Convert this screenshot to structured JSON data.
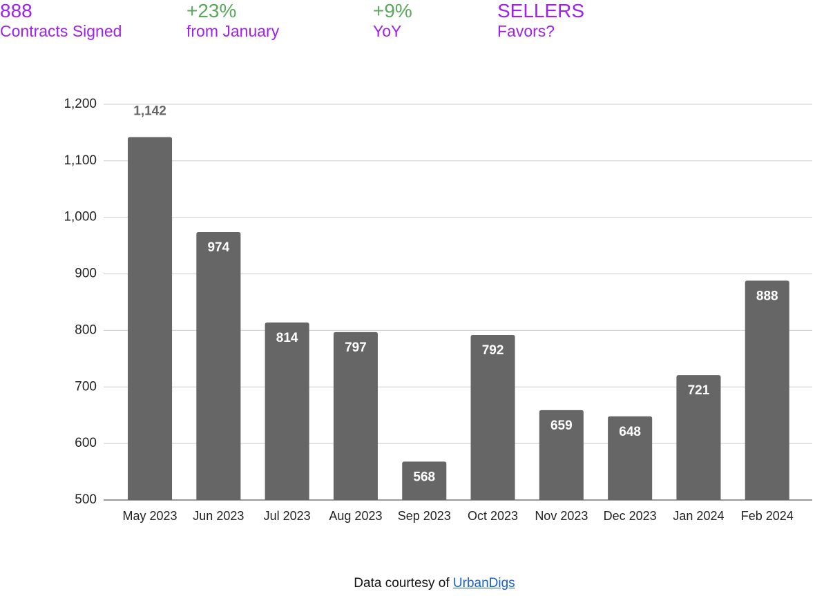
{
  "header": {
    "stats": [
      {
        "value": "888",
        "label": "Contracts Signed"
      },
      {
        "value": "+23%",
        "label": "from January"
      },
      {
        "value": "+9%",
        "label": "YoY"
      },
      {
        "value": "SELLERS",
        "label": "Favors?"
      }
    ]
  },
  "chart_data": {
    "type": "bar",
    "categories": [
      "May 2023",
      "Jun 2023",
      "Jul 2023",
      "Aug 2023",
      "Sep 2023",
      "Oct 2023",
      "Nov 2023",
      "Dec 2023",
      "Jan 2024",
      "Feb 2024"
    ],
    "values": [
      1142,
      974,
      814,
      797,
      568,
      792,
      659,
      648,
      721,
      888
    ],
    "value_labels": [
      "1,142",
      "974",
      "814",
      "797",
      "568",
      "792",
      "659",
      "648",
      "721",
      "888"
    ],
    "color": "#666666",
    "ylim": [
      500,
      1200
    ],
    "yticks": [
      500,
      600,
      700,
      800,
      900,
      {
        "value": 1000,
        "label": "1,000"
      },
      {
        "value": 1100,
        "label": "1,100"
      },
      {
        "value": 1200,
        "label": "1,200"
      }
    ],
    "grid": true
  },
  "footer": {
    "text": "Data courtesy of",
    "link": "UrbanDigs"
  }
}
